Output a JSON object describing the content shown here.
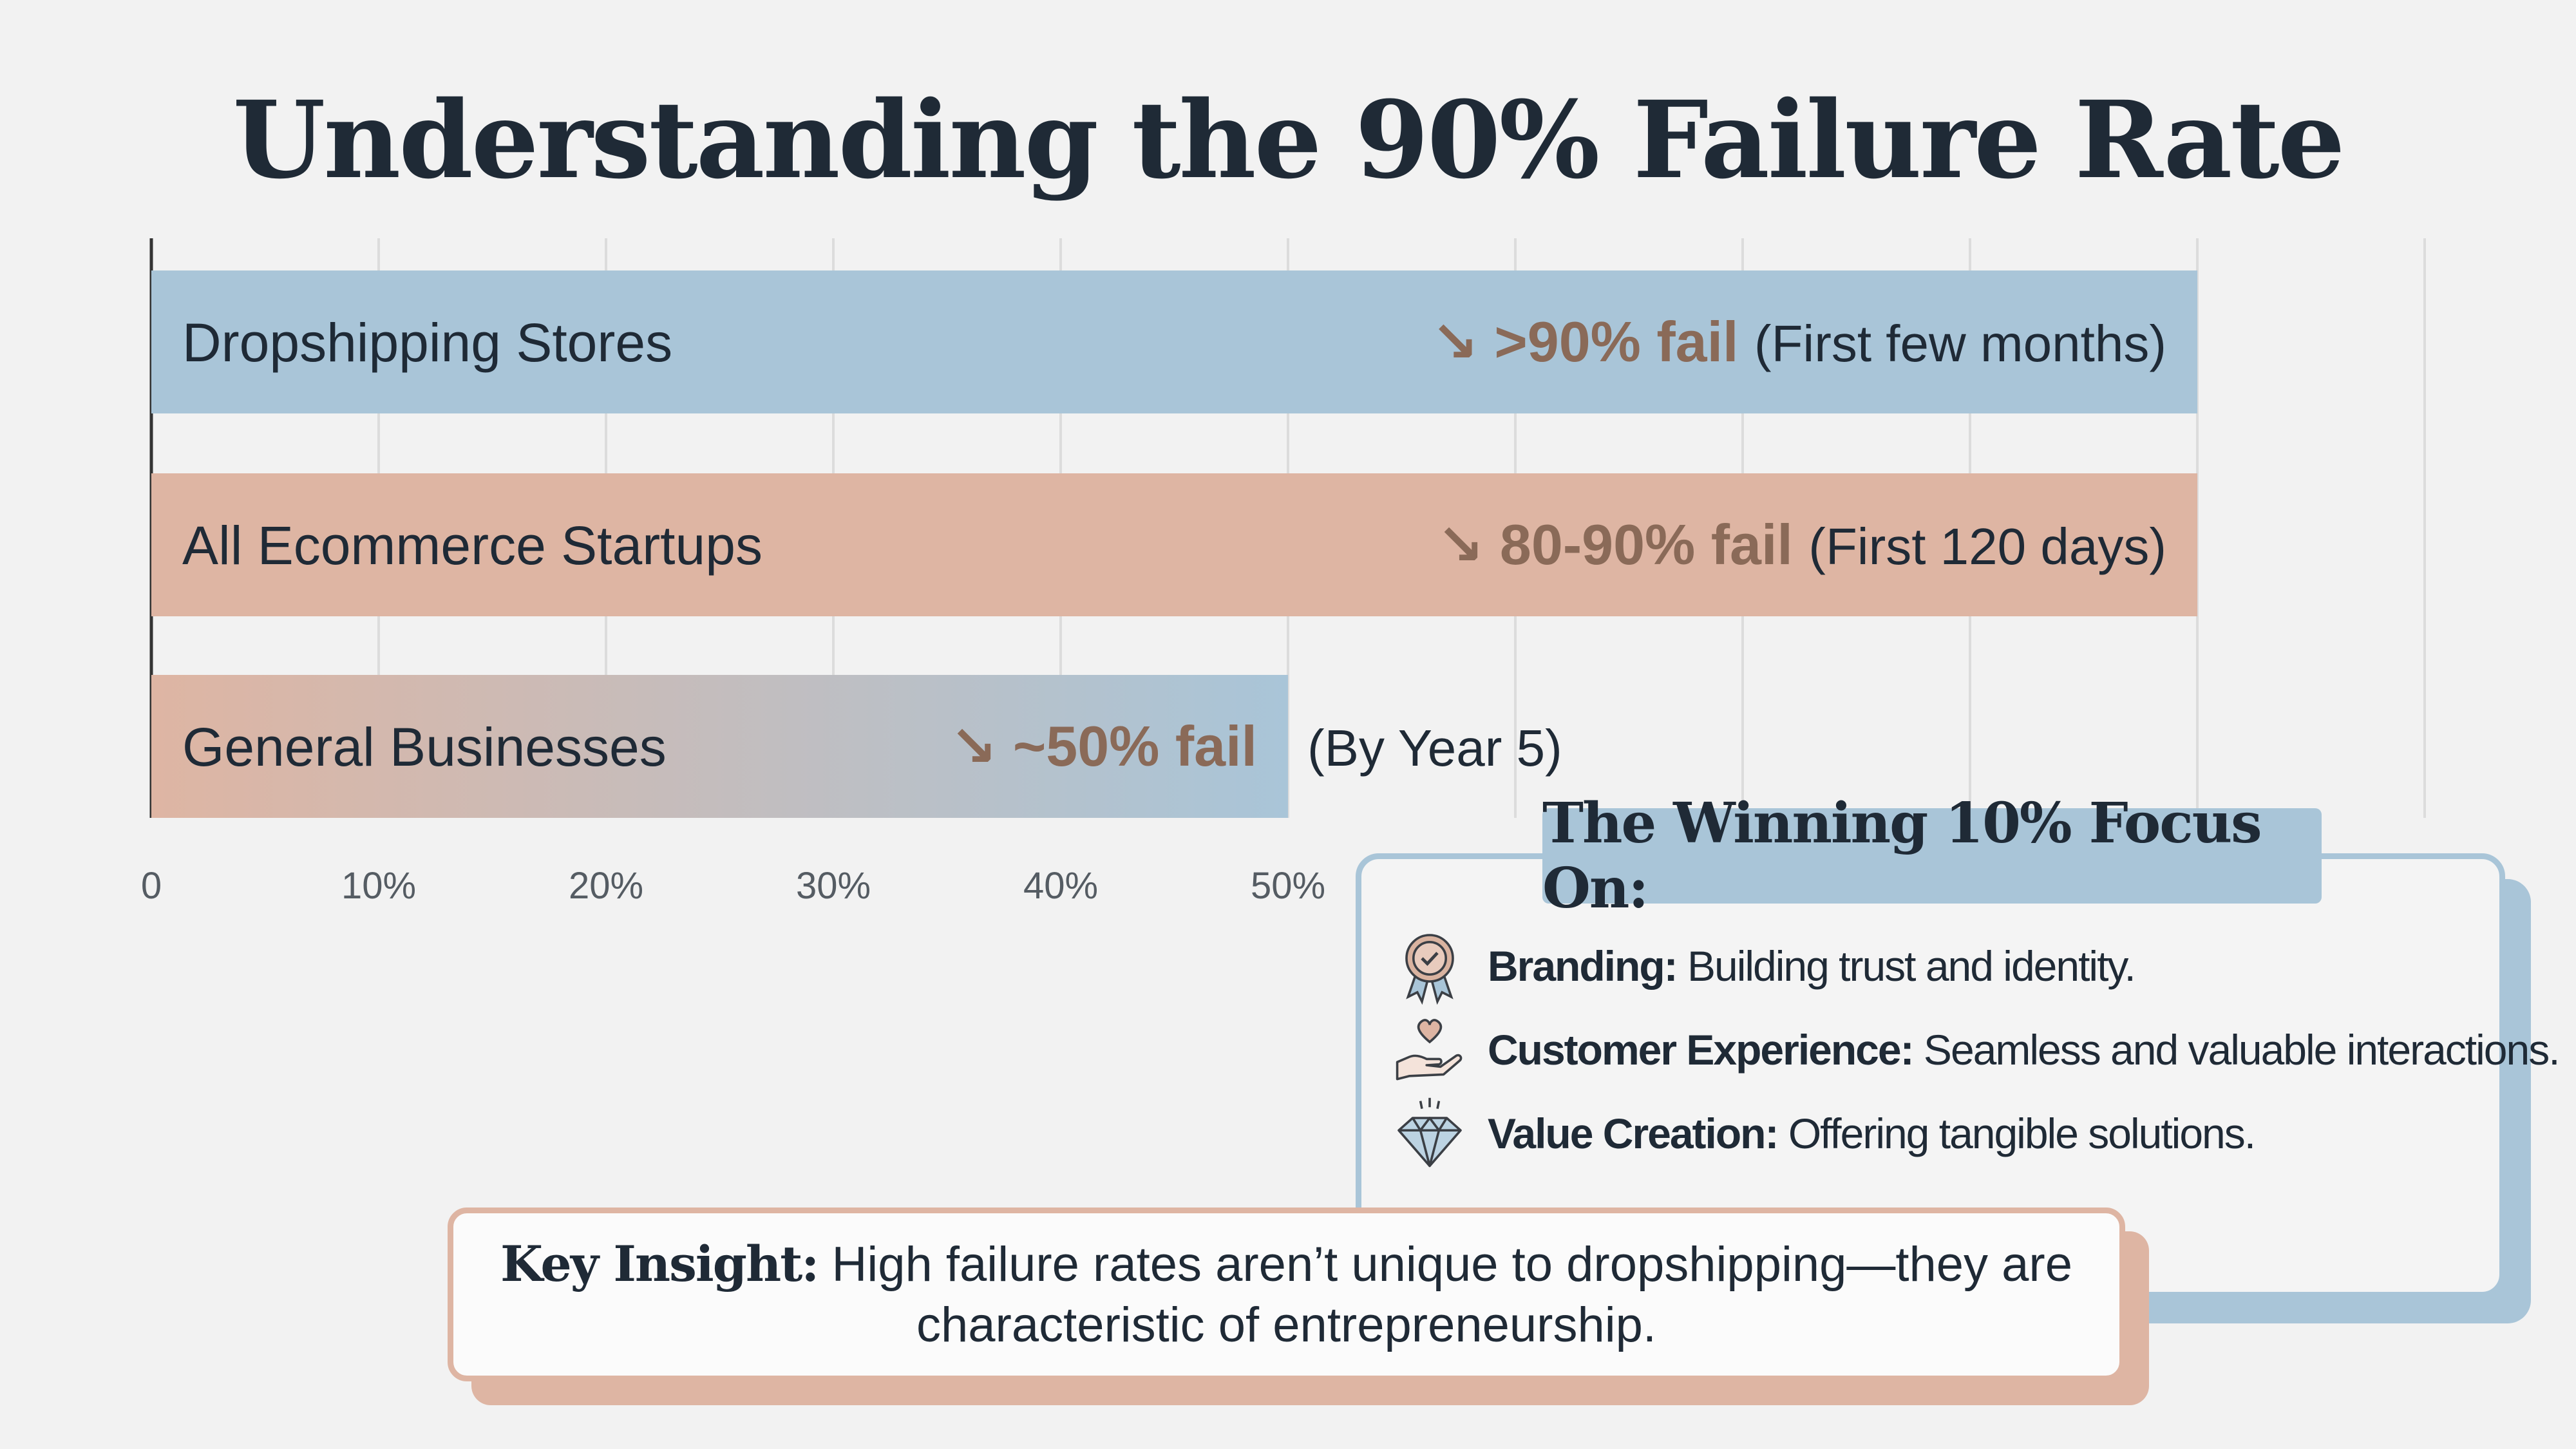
{
  "title": "Understanding the 90% Failure Rate",
  "colors": {
    "blue": "#a9c5d8",
    "peach": "#deb5a3",
    "fail_text": "#8a6a58",
    "ink": "#1f2a36"
  },
  "chart_data": {
    "type": "bar",
    "orientation": "horizontal",
    "categories": [
      "Dropshipping Stores",
      "All Ecommerce Startups",
      "General Businesses"
    ],
    "values": [
      90,
      90,
      50
    ],
    "fail_labels": [
      ">90% fail",
      "80-90% fail",
      "~50% fail"
    ],
    "notes": [
      "(First few months)",
      "(First 120 days)",
      "(By Year 5)"
    ],
    "bar_colors": [
      "#a9c5d8",
      "#deb5a3",
      "gradient"
    ],
    "xlim": [
      0,
      100
    ],
    "xticks": [
      0,
      10,
      20,
      30,
      40,
      50
    ],
    "xtick_labels": [
      "0",
      "10%",
      "20%",
      "30%",
      "40%",
      "50%"
    ],
    "gridlines": [
      10,
      20,
      30,
      40,
      50,
      60,
      70,
      80,
      90,
      100
    ],
    "grid": true
  },
  "focus": {
    "heading": "The Winning 10% Focus On:",
    "items": [
      {
        "icon": "award-ribbon-icon",
        "label": "Branding:",
        "text": "Building trust and identity."
      },
      {
        "icon": "heart-hand-icon",
        "label": "Customer Experience:",
        "text": "Seamless and valuable interactions."
      },
      {
        "icon": "diamond-icon",
        "label": "Value Creation:",
        "text": "Offering tangible solutions."
      }
    ]
  },
  "insight": {
    "label": "Key Insight:",
    "line1": "High failure rates aren’t unique to dropshipping—they are",
    "line2": "characteristic of entrepreneurship."
  }
}
